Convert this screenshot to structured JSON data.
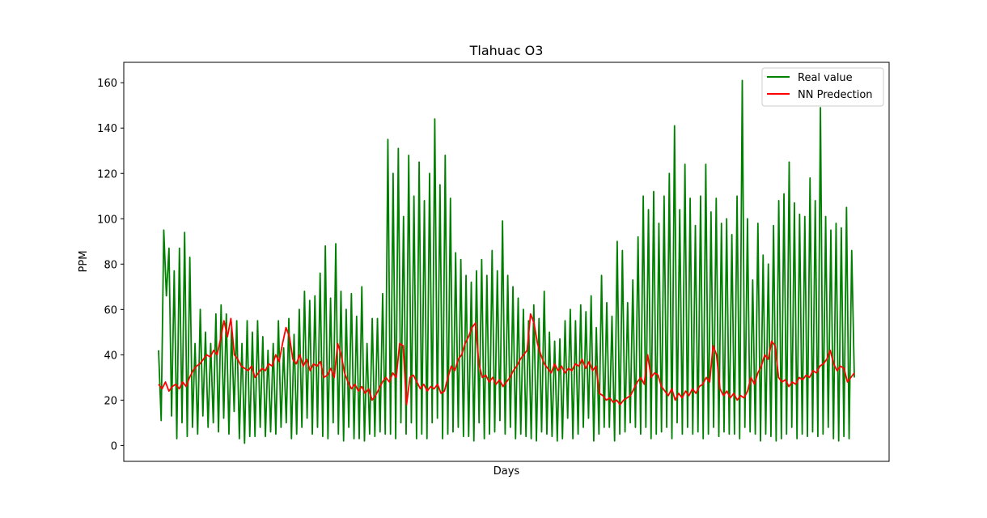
{
  "chart_data": {
    "type": "line",
    "title": "Tlahuac O3",
    "xlabel": "Days",
    "ylabel": "PPM",
    "ylim": [
      -7,
      169
    ],
    "yticks": [
      0,
      20,
      40,
      60,
      80,
      100,
      120,
      140,
      160
    ],
    "xticks_visible": false,
    "grid": false,
    "legend_position": "top-right",
    "series": [
      {
        "name": "Real value",
        "color": "#008000",
        "values": [
          42,
          11,
          95,
          66,
          87,
          13,
          77,
          3,
          87,
          10,
          94,
          4,
          83,
          8,
          45,
          5,
          60,
          13,
          50,
          8,
          45,
          10,
          58,
          6,
          62,
          12,
          58,
          5,
          52,
          15,
          55,
          3,
          45,
          1,
          55,
          4,
          50,
          4,
          55,
          8,
          48,
          4,
          42,
          6,
          45,
          5,
          55,
          8,
          43,
          10,
          56,
          3,
          49,
          5,
          60,
          8,
          68,
          12,
          64,
          5,
          66,
          8,
          76,
          4,
          88,
          3,
          65,
          10,
          89,
          5,
          68,
          2,
          60,
          8,
          67,
          3,
          57,
          3,
          70,
          2,
          45,
          5,
          56,
          4,
          56,
          6,
          67,
          5,
          135,
          5,
          120,
          3,
          131,
          10,
          101,
          5,
          128,
          10,
          110,
          3,
          125,
          5,
          108,
          3,
          120,
          10,
          144,
          12,
          115,
          3,
          128,
          5,
          109,
          6,
          85,
          8,
          82,
          4,
          75,
          4,
          72,
          2,
          77,
          10,
          82,
          3,
          75,
          5,
          86,
          6,
          77,
          11,
          99,
          5,
          75,
          8,
          70,
          3,
          65,
          5,
          60,
          4,
          55,
          3,
          62,
          2,
          56,
          6,
          68,
          5,
          50,
          4,
          46,
          2,
          47,
          3,
          55,
          12,
          60,
          3,
          55,
          5,
          62,
          8,
          59,
          12,
          66,
          2,
          52,
          5,
          75,
          8,
          63,
          8,
          57,
          2,
          90,
          5,
          86,
          6,
          63,
          10,
          73,
          8,
          92,
          5,
          110,
          8,
          104,
          3,
          112,
          5,
          98,
          6,
          110,
          8,
          120,
          3,
          141,
          10,
          104,
          5,
          124,
          8,
          109,
          5,
          97,
          6,
          110,
          3,
          124,
          5,
          103,
          8,
          109,
          4,
          98,
          6,
          100,
          5,
          93,
          5,
          110,
          3,
          161,
          8,
          100,
          6,
          73,
          5,
          98,
          2,
          84,
          5,
          80,
          4,
          97,
          2,
          108,
          3,
          111,
          5,
          125,
          8,
          107,
          3,
          102,
          5,
          101,
          4,
          118,
          6,
          108,
          4,
          149,
          5,
          101,
          8,
          95,
          3,
          98,
          2,
          96,
          4,
          105,
          3,
          86,
          30
        ]
      },
      {
        "name": "NN Predection",
        "color": "#ff0000",
        "values": [
          27,
          25,
          28,
          24,
          26,
          27,
          25,
          28,
          26,
          30,
          33,
          35,
          36,
          38,
          40,
          39,
          42,
          40,
          47,
          55,
          48,
          56,
          40,
          38,
          35,
          34,
          33,
          35,
          30,
          32,
          34,
          33,
          36,
          35,
          40,
          37,
          45,
          52,
          48,
          38,
          36,
          40,
          35,
          38,
          33,
          36,
          35,
          37,
          30,
          31,
          34,
          30,
          45,
          40,
          32,
          28,
          25,
          27,
          24,
          26,
          23,
          25,
          20,
          22,
          25,
          28,
          30,
          28,
          32,
          30,
          45,
          44,
          18,
          30,
          31,
          28,
          25,
          27,
          24,
          26,
          25,
          27,
          23,
          24,
          30,
          35,
          33,
          38,
          40,
          45,
          48,
          52,
          54,
          36,
          30,
          31,
          28,
          30,
          27,
          29,
          26,
          28,
          30,
          33,
          35,
          38,
          40,
          42,
          58,
          54,
          45,
          40,
          36,
          34,
          32,
          36,
          33,
          35,
          32,
          34,
          33,
          36,
          35,
          38,
          34,
          37,
          33,
          35,
          23,
          22,
          20,
          21,
          19,
          20,
          18,
          20,
          21,
          22,
          25,
          28,
          30,
          27,
          40,
          30,
          32,
          31,
          26,
          24,
          22,
          25,
          20,
          23,
          21,
          24,
          22,
          25,
          23,
          26,
          27,
          30,
          28,
          44,
          40,
          25,
          22,
          24,
          21,
          23,
          20,
          22,
          21,
          24,
          30,
          27,
          32,
          35,
          40,
          38,
          46,
          44,
          30,
          28,
          29,
          26,
          28,
          27,
          30,
          29,
          31,
          30,
          33,
          32,
          35,
          36,
          38,
          42,
          36,
          33,
          35,
          34,
          28,
          30,
          32
        ]
      }
    ]
  }
}
